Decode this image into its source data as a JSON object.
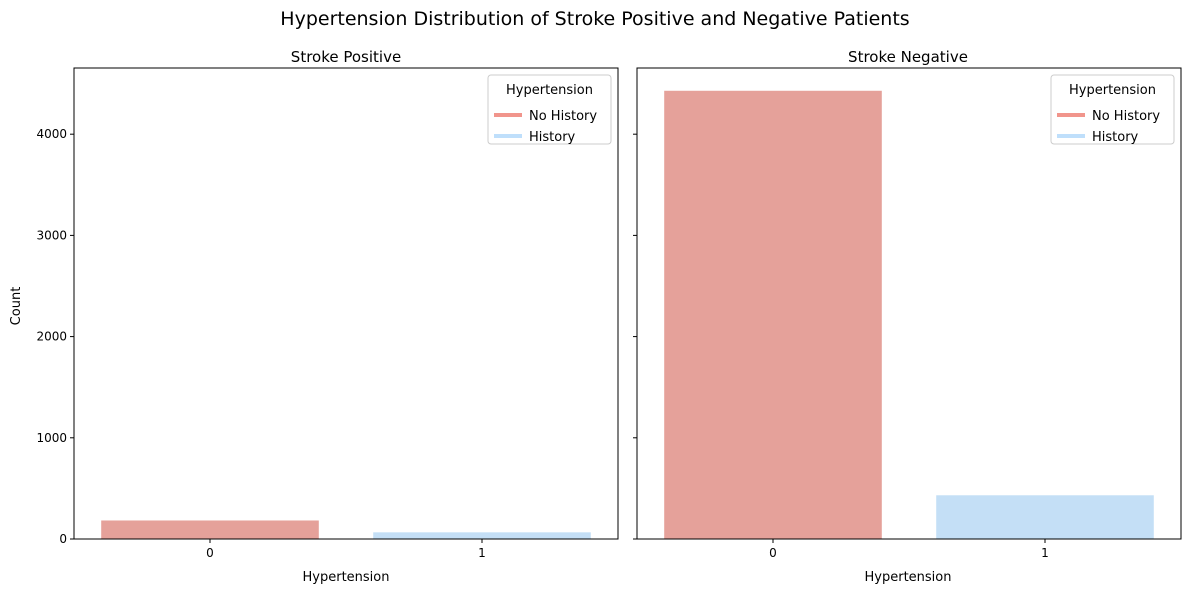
{
  "figure": {
    "suptitle": "Hypertension Distribution of Stroke Positive and Negative Patients"
  },
  "chart_data": [
    {
      "type": "bar",
      "title": "Stroke Positive",
      "xlabel": "Hypertension",
      "ylabel": "Count",
      "categories": [
        "0",
        "1"
      ],
      "values": [
        183,
        66
      ],
      "colors": [
        "#e5a19a",
        "#c4dff6"
      ],
      "ylim": [
        0,
        4654
      ],
      "yticks": [
        "0",
        "1000",
        "2000",
        "3000",
        "4000"
      ],
      "legend": {
        "title": "Hypertension",
        "placement": "top-right",
        "entries": [
          {
            "label": "No History",
            "color": "#f1958c"
          },
          {
            "label": "History",
            "color": "#bfdffb"
          }
        ]
      }
    },
    {
      "type": "bar",
      "title": "Stroke Negative",
      "xlabel": "Hypertension",
      "ylabel": "",
      "categories": [
        "0",
        "1"
      ],
      "values": [
        4429,
        432
      ],
      "colors": [
        "#e5a19a",
        "#c4dff6"
      ],
      "ylim": [
        0,
        4654
      ],
      "yticks": [
        "",
        "",
        "",
        "",
        ""
      ],
      "legend": {
        "title": "Hypertension",
        "placement": "top-right",
        "entries": [
          {
            "label": "No History",
            "color": "#f1958c"
          },
          {
            "label": "History",
            "color": "#bfdffb"
          }
        ]
      }
    }
  ]
}
